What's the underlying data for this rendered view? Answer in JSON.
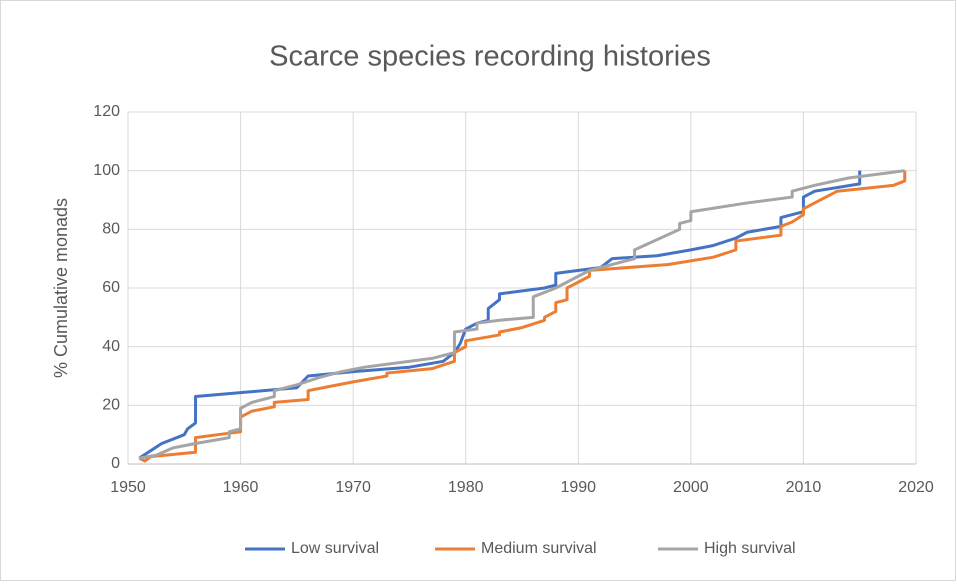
{
  "chart_data": {
    "type": "line",
    "title": "Scarce species recording histories",
    "y_label": "% Cumulative monads",
    "xlim": [
      1950,
      2020
    ],
    "xticks": [
      1950,
      1960,
      1970,
      1980,
      1990,
      2000,
      2010,
      2020
    ],
    "ylim": [
      0,
      120
    ],
    "yticks": [
      0,
      20,
      40,
      60,
      80,
      100,
      120
    ],
    "grid": true,
    "legend": "bottom",
    "series": [
      {
        "name": "Low survival",
        "color": "#4472c4",
        "x": [
          1951,
          1953,
          1955,
          1955.3,
          1956,
          1956,
          1965,
          1966,
          1970,
          1975,
          1978,
          1979,
          1979.5,
          1980,
          1981,
          1982,
          1982,
          1983,
          1983,
          1987,
          1988,
          1988,
          1992,
          1993,
          1997,
          2000,
          2002,
          2004,
          2005,
          2008,
          2008,
          2010,
          2010,
          2011,
          2015,
          2015
        ],
        "values": [
          2,
          7,
          10,
          12,
          14,
          23,
          26,
          30,
          31.5,
          33,
          35,
          38,
          41,
          46,
          48,
          49,
          53,
          56,
          58,
          60,
          61,
          65,
          67,
          70,
          71,
          73,
          74.5,
          77,
          79,
          81,
          84,
          86,
          91,
          93,
          95.5,
          100
        ]
      },
      {
        "name": "Medium survival",
        "color": "#ed7d31",
        "x": [
          1951,
          1951.5,
          1952,
          1956,
          1956,
          1959,
          1960,
          1960,
          1961,
          1963,
          1963,
          1966,
          1966,
          1968,
          1970,
          1973,
          1973,
          1977,
          1979,
          1979,
          1980,
          1980,
          1983,
          1983,
          1985,
          1987,
          1987,
          1988,
          1988,
          1989,
          1989,
          1990,
          1991,
          1991,
          1998,
          2002,
          2004,
          2004,
          2008,
          2008,
          2009,
          2010,
          2010,
          2011,
          2012,
          2013,
          2018,
          2019,
          2019
        ],
        "values": [
          2,
          1,
          2.5,
          4,
          9,
          10.5,
          11,
          16,
          18,
          19.5,
          21,
          22,
          25,
          26.5,
          28,
          30,
          31,
          32.5,
          35,
          38,
          40,
          42,
          44,
          45,
          46.5,
          49,
          50,
          52,
          55,
          56,
          60,
          62,
          64,
          66,
          68,
          70.5,
          73,
          76,
          78,
          81,
          82.5,
          85,
          87,
          89,
          91,
          93,
          95,
          96.5,
          100
        ]
      },
      {
        "name": "High survival",
        "color": "#a5a5a5",
        "x": [
          1951,
          1952.5,
          1954,
          1956,
          1959,
          1959,
          1960,
          1960,
          1961,
          1963,
          1963,
          1965,
          1967,
          1969,
          1971,
          1977,
          1979,
          1979,
          1981,
          1981,
          1983,
          1986,
          1986,
          1988,
          1990,
          1991,
          1994,
          1995,
          1995,
          1999,
          1999,
          2000,
          2000,
          2005,
          2009,
          2009,
          2011,
          2014,
          2019
        ],
        "values": [
          2,
          3,
          5.5,
          7,
          9,
          11,
          12,
          19,
          21,
          23,
          25,
          27,
          29.5,
          31.5,
          33,
          36,
          38,
          45,
          46,
          48,
          49,
          50,
          57,
          60,
          64,
          66,
          69,
          70,
          73,
          80,
          82,
          83,
          86,
          89,
          91,
          93,
          95,
          97.5,
          100
        ]
      }
    ]
  }
}
